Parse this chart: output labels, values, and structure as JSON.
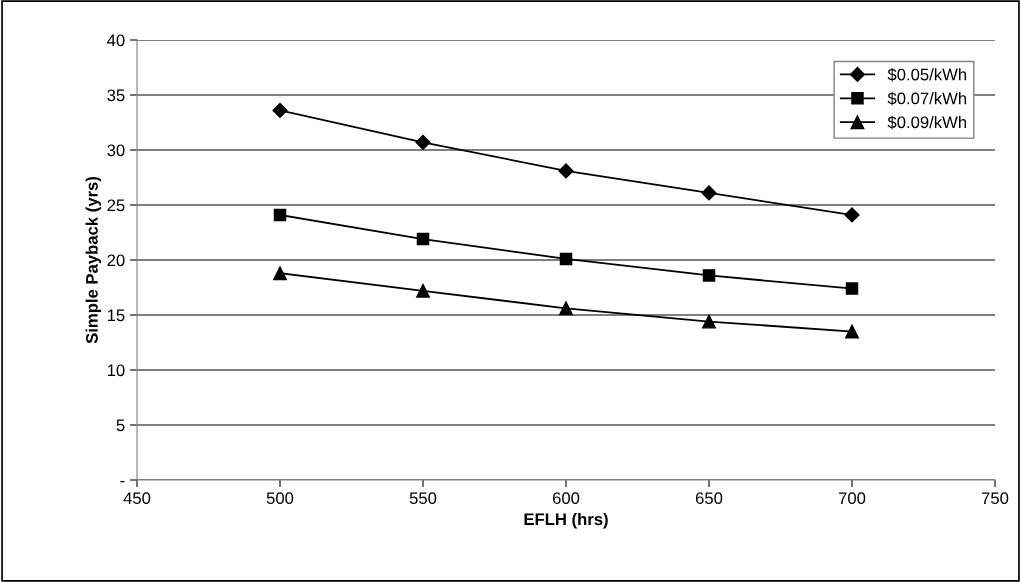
{
  "chart_data": {
    "type": "line",
    "xlabel": "EFLH (hrs)",
    "ylabel": "Simple Payback (yrs)",
    "x": [
      500,
      550,
      600,
      650,
      700
    ],
    "series": [
      {
        "name": "$0.05/kWh",
        "color": "#000000",
        "marker": "diamond",
        "values": [
          33.6,
          30.7,
          28.1,
          26.1,
          24.1
        ]
      },
      {
        "name": "$0.07/kWh",
        "color": "#000000",
        "marker": "square",
        "values": [
          24.1,
          21.9,
          20.1,
          18.6,
          17.4
        ]
      },
      {
        "name": "$0.09/kWh",
        "color": "#000000",
        "marker": "triangle",
        "values": [
          18.8,
          17.2,
          15.6,
          14.4,
          13.5
        ]
      }
    ],
    "xlim": [
      450,
      750
    ],
    "xticks": [
      450,
      500,
      550,
      600,
      650,
      700,
      750
    ],
    "ylim": [
      0,
      40
    ],
    "yticks": [
      {
        "value": 0,
        "label": "-"
      },
      5,
      10,
      15,
      20,
      25,
      30,
      35,
      40
    ],
    "grid": "y",
    "legend": "top right",
    "line_style": "solid"
  }
}
